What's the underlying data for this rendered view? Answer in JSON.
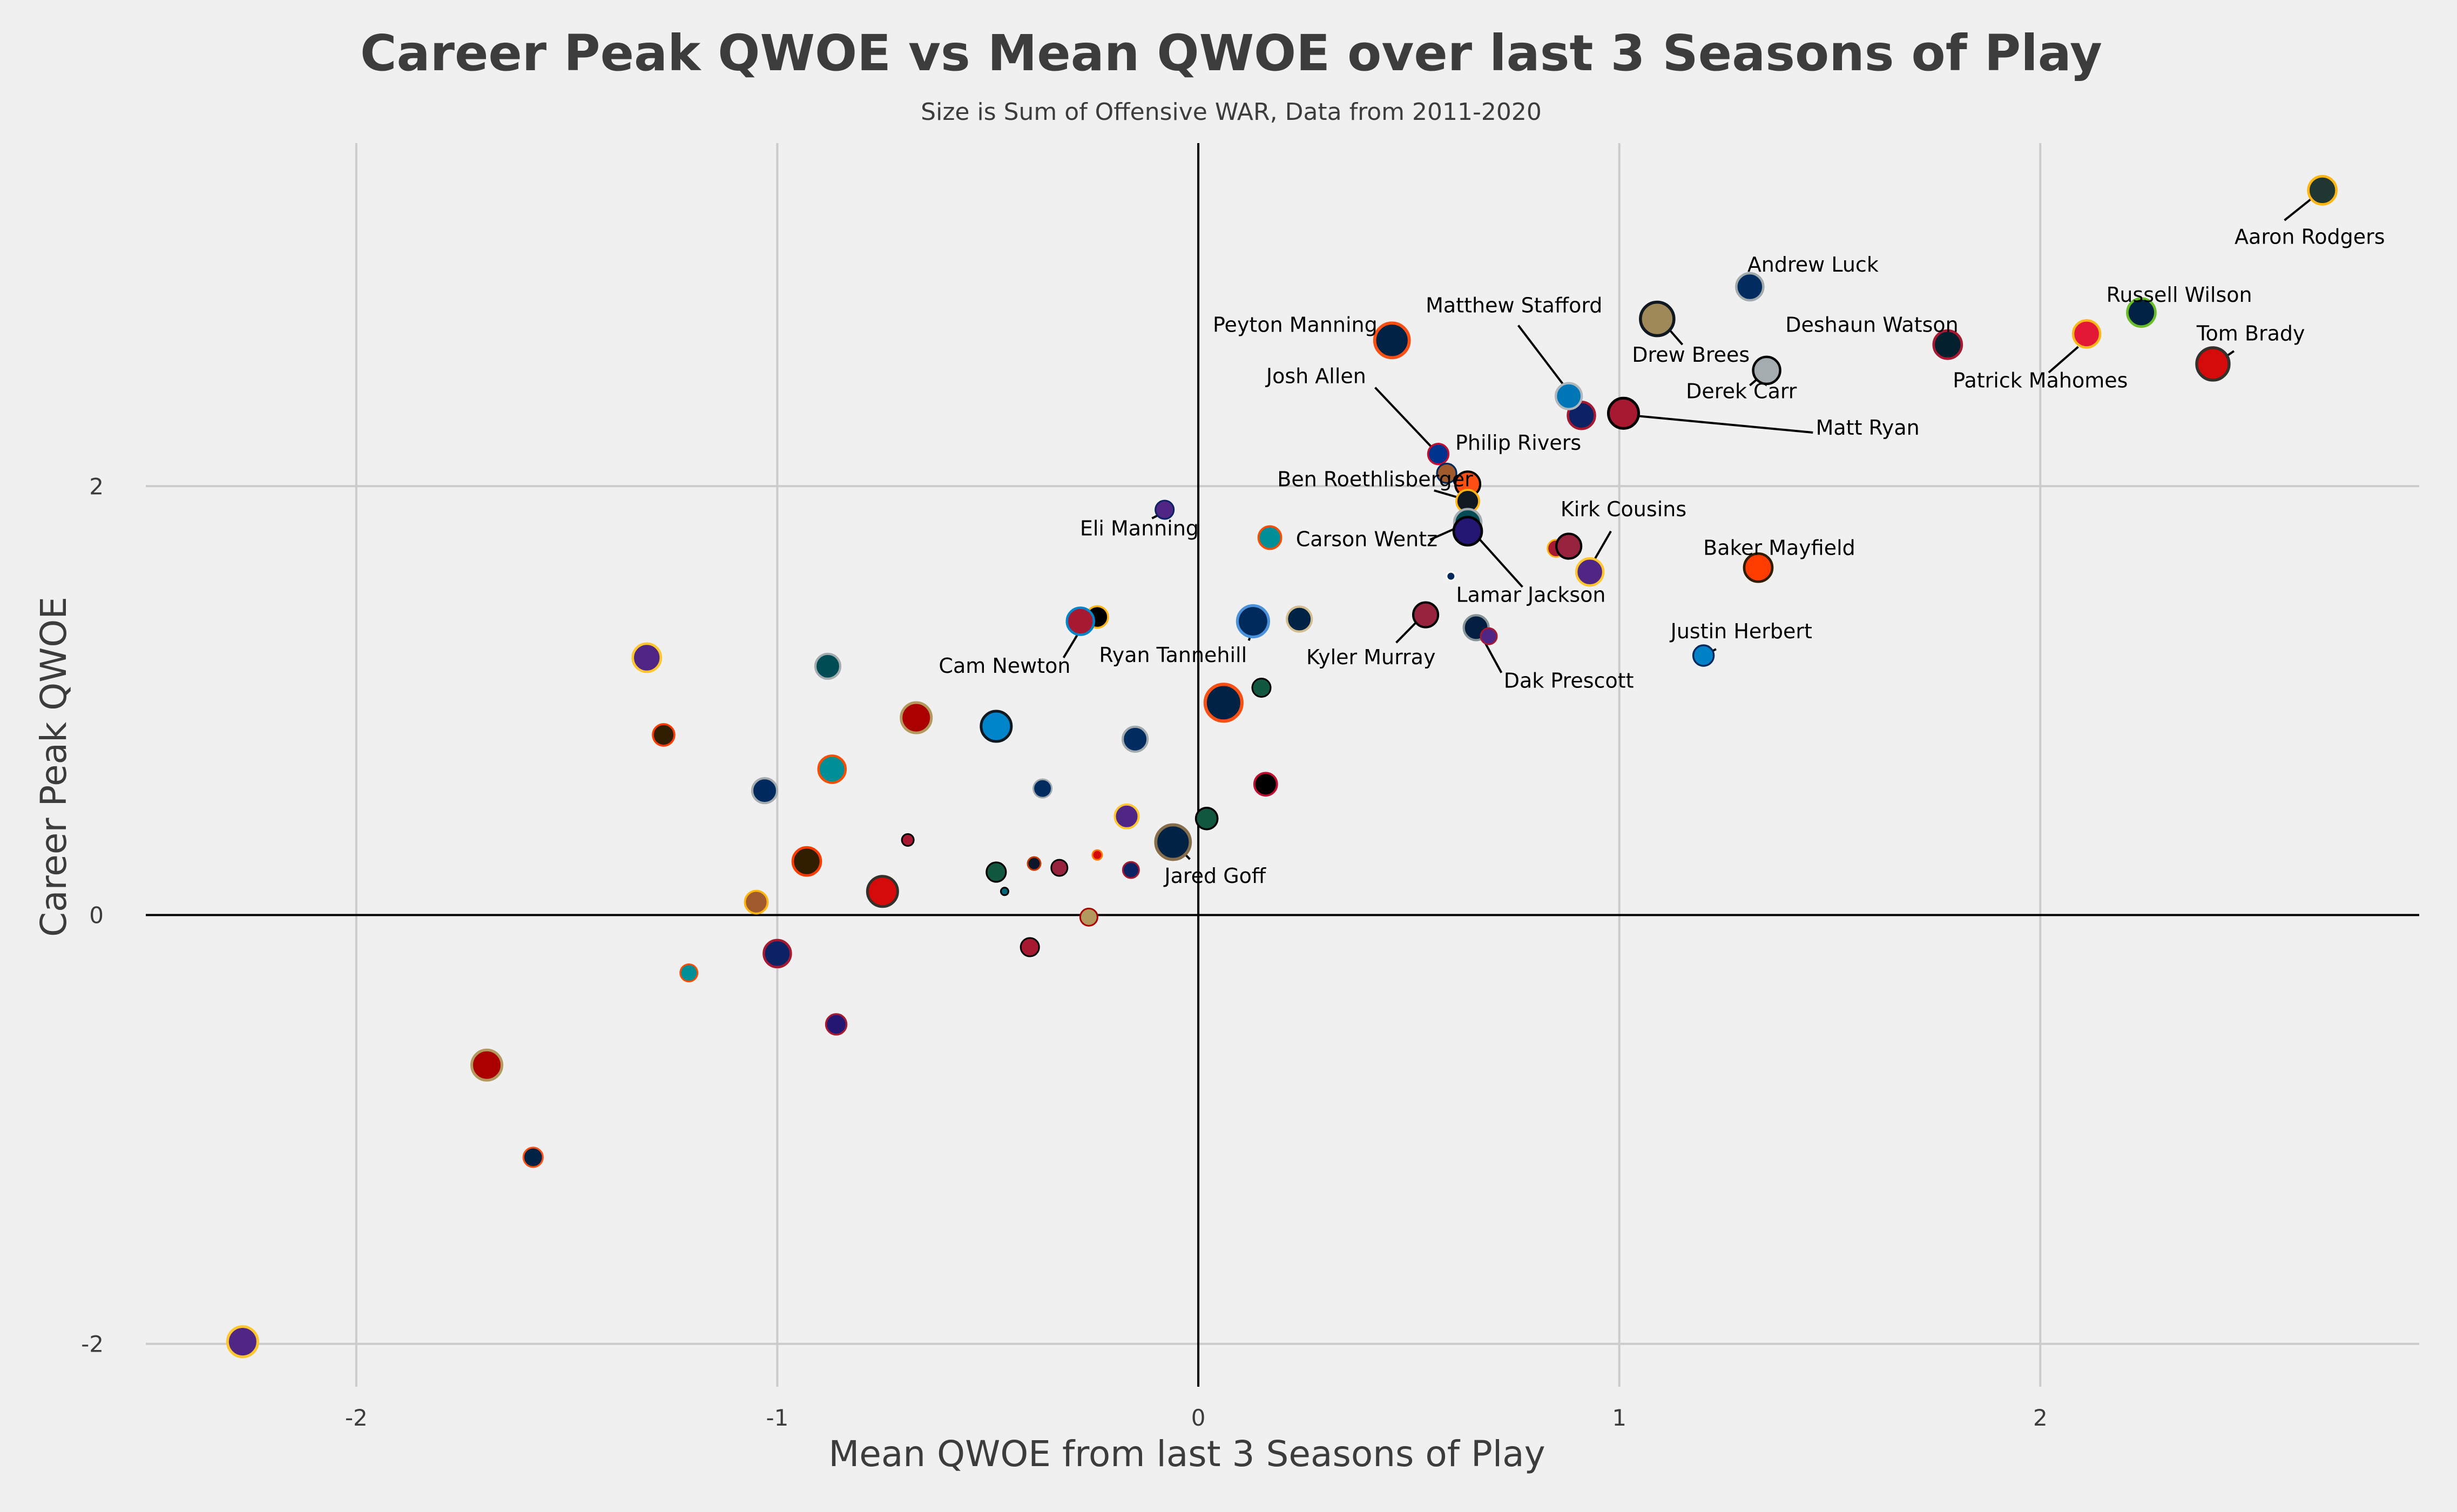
{
  "chart_data": {
    "type": "scatter",
    "title": "Career Peak QWOE vs Mean QWOE over last 3 Seasons of Play",
    "subtitle": "Size is Sum of Offensive WAR, Data from 2011-2020",
    "xlabel": "Mean QWOE from last 3 Seasons of Play",
    "ylabel": "Career Peak QWOE",
    "xlim": [
      -2.5,
      2.9
    ],
    "ylim": [
      -2.2,
      3.6
    ],
    "x_ticks": [
      -2,
      -1,
      0,
      1,
      2
    ],
    "y_ticks": [
      -2,
      0,
      2
    ],
    "x_tick_labels": [
      "-2",
      "-1",
      "0",
      "1",
      "2"
    ],
    "y_tick_labels": [
      "-2",
      "0",
      "2"
    ],
    "grid": true,
    "zero_lines": true,
    "points": [
      {
        "x": 2.67,
        "y": 3.38,
        "size": 52,
        "fill": "#203731",
        "edge": "#ffb612",
        "label": "Aaron Rodgers"
      },
      {
        "x": 2.41,
        "y": 2.57,
        "size": 60,
        "fill": "#d50a0a",
        "edge": "#34302b",
        "label": "Tom Brady"
      },
      {
        "x": 2.24,
        "y": 2.81,
        "size": 52,
        "fill": "#002244",
        "edge": "#69be28",
        "label": "Russell Wilson"
      },
      {
        "x": 2.11,
        "y": 2.71,
        "size": 50,
        "fill": "#e31837",
        "edge": "#ffb81c",
        "label": "Patrick Mahomes"
      },
      {
        "x": 1.78,
        "y": 2.66,
        "size": 52,
        "fill": "#03202f",
        "edge": "#a71930",
        "label": "Deshaun Watson"
      },
      {
        "x": 1.31,
        "y": 2.93,
        "size": 50,
        "fill": "#002c5f",
        "edge": "#a2aaad",
        "label": "Andrew Luck"
      },
      {
        "x": 1.35,
        "y": 2.54,
        "size": 50,
        "fill": "#a5acaf",
        "edge": "#000000",
        "label": "Derek Carr"
      },
      {
        "x": 1.09,
        "y": 2.78,
        "size": 62,
        "fill": "#9f8958",
        "edge": "#101820",
        "label": "Drew Brees"
      },
      {
        "x": 1.01,
        "y": 2.34,
        "size": 56,
        "fill": "#a71930",
        "edge": "#000000",
        "label": "Matt Ryan"
      },
      {
        "x": 0.91,
        "y": 2.33,
        "size": 50,
        "fill": "#0b2265",
        "edge": "#a71930",
        "label": ""
      },
      {
        "x": 0.88,
        "y": 2.42,
        "size": 48,
        "fill": "#0076b6",
        "edge": "#b0b7bc",
        "label": "Matthew Stafford"
      },
      {
        "x": 0.46,
        "y": 2.68,
        "size": 64,
        "fill": "#002244",
        "edge": "#fb4f14",
        "label": "Peyton Manning"
      },
      {
        "x": 0.57,
        "y": 2.15,
        "size": 38,
        "fill": "#00338d",
        "edge": "#c60c30",
        "label": "Josh Allen"
      },
      {
        "x": 0.59,
        "y": 2.06,
        "size": 36,
        "fill": "#a05a2c",
        "edge": "#002a5e",
        "label": "Philip Rivers"
      },
      {
        "x": 0.64,
        "y": 2.01,
        "size": 46,
        "fill": "#fb4f14",
        "edge": "#000000",
        "label": ""
      },
      {
        "x": 0.64,
        "y": 1.93,
        "size": 42,
        "fill": "#101820",
        "edge": "#ffb612",
        "label": "Ben Roethlisberger"
      },
      {
        "x": 0.64,
        "y": 1.83,
        "size": 50,
        "fill": "#004c54",
        "edge": "#a5acaf",
        "label": ""
      },
      {
        "x": 0.64,
        "y": 1.79,
        "size": 52,
        "fill": "#241773",
        "edge": "#000000",
        "label": "Lamar Jackson"
      },
      {
        "x": 0.6,
        "y": 1.58,
        "size": 16,
        "fill": "#002a5e",
        "edge": "#ffffff",
        "label": ""
      },
      {
        "x": 0.85,
        "y": 1.71,
        "size": 32,
        "fill": "#a71930",
        "edge": "#ffb612",
        "label": ""
      },
      {
        "x": 0.88,
        "y": 1.72,
        "size": 46,
        "fill": "#97233f",
        "edge": "#000000",
        "label": ""
      },
      {
        "x": 0.93,
        "y": 1.6,
        "size": 50,
        "fill": "#4f2683",
        "edge": "#ffc62f",
        "label": "Kirk Cousins"
      },
      {
        "x": 1.33,
        "y": 1.62,
        "size": 52,
        "fill": "#ff3c00",
        "edge": "#311d00",
        "label": "Baker Mayfield"
      },
      {
        "x": 1.2,
        "y": 1.21,
        "size": 38,
        "fill": "#0080c6",
        "edge": "#002a5e",
        "label": "Justin Herbert"
      },
      {
        "x": 0.66,
        "y": 1.34,
        "size": 46,
        "fill": "#041e42",
        "edge": "#869397",
        "label": "Dak Prescott"
      },
      {
        "x": 0.69,
        "y": 1.3,
        "size": 30,
        "fill": "#4f2683",
        "edge": "#a71930",
        "label": ""
      },
      {
        "x": 0.54,
        "y": 1.4,
        "size": 46,
        "fill": "#97233f",
        "edge": "#000000",
        "label": "Kyler Murray"
      },
      {
        "x": 0.24,
        "y": 1.38,
        "size": 46,
        "fill": "#002244",
        "edge": "#d3bc8d",
        "label": ""
      },
      {
        "x": 0.13,
        "y": 1.37,
        "size": 58,
        "fill": "#002a5c",
        "edge": "#4b92db",
        "label": "Ryan Tannehill"
      },
      {
        "x": 0.17,
        "y": 1.76,
        "size": 42,
        "fill": "#008e97",
        "edge": "#fc4c02",
        "label": ""
      },
      {
        "x": 0.15,
        "y": 1.06,
        "size": 34,
        "fill": "#125740",
        "edge": "#000000",
        "label": ""
      },
      {
        "x": -0.08,
        "y": 1.89,
        "size": 34,
        "fill": "#4f2683",
        "edge": "#0b2265",
        "label": "Eli Manning"
      },
      {
        "x": -0.24,
        "y": 1.39,
        "size": 40,
        "fill": "#000000",
        "edge": "#ffb612",
        "label": ""
      },
      {
        "x": -0.28,
        "y": 1.37,
        "size": 50,
        "fill": "#a71930",
        "edge": "#0085ca",
        "label": "Cam Newton"
      },
      {
        "x": 0.06,
        "y": 0.99,
        "size": 68,
        "fill": "#002244",
        "edge": "#fb4f14",
        "label": ""
      },
      {
        "x": 0.16,
        "y": 0.61,
        "size": 42,
        "fill": "#000000",
        "edge": "#c60c30",
        "label": ""
      },
      {
        "x": -0.15,
        "y": 0.82,
        "size": 46,
        "fill": "#002c5f",
        "edge": "#a2aaad",
        "label": ""
      },
      {
        "x": -0.48,
        "y": 0.88,
        "size": 56,
        "fill": "#0085ca",
        "edge": "#101820",
        "label": ""
      },
      {
        "x": -0.67,
        "y": 0.92,
        "size": 56,
        "fill": "#aa0000",
        "edge": "#b3995d",
        "label": ""
      },
      {
        "x": -0.37,
        "y": 0.59,
        "size": 34,
        "fill": "#002c5f",
        "edge": "#a2aaad",
        "label": ""
      },
      {
        "x": -0.17,
        "y": 0.46,
        "size": 44,
        "fill": "#4f2683",
        "edge": "#ffc62f",
        "label": ""
      },
      {
        "x": 0.02,
        "y": 0.45,
        "size": 40,
        "fill": "#125740",
        "edge": "#000000",
        "label": ""
      },
      {
        "x": -0.06,
        "y": 0.34,
        "size": 64,
        "fill": "#002244",
        "edge": "#866d4b",
        "label": "Jared Goff"
      },
      {
        "x": -0.16,
        "y": 0.21,
        "size": 30,
        "fill": "#0b2265",
        "edge": "#a71930",
        "label": ""
      },
      {
        "x": -0.24,
        "y": 0.28,
        "size": 18,
        "fill": "#d50a0a",
        "edge": "#ff7900",
        "label": ""
      },
      {
        "x": -0.33,
        "y": 0.22,
        "size": 30,
        "fill": "#97233f",
        "edge": "#000000",
        "label": ""
      },
      {
        "x": -0.39,
        "y": 0.24,
        "size": 24,
        "fill": "#0b162a",
        "edge": "#c83803",
        "label": ""
      },
      {
        "x": -0.48,
        "y": 0.2,
        "size": 36,
        "fill": "#125740",
        "edge": "#000000",
        "label": ""
      },
      {
        "x": -0.46,
        "y": 0.11,
        "size": 14,
        "fill": "#006778",
        "edge": "#000000",
        "label": ""
      },
      {
        "x": -0.69,
        "y": 0.35,
        "size": 22,
        "fill": "#a71930",
        "edge": "#000000",
        "label": ""
      },
      {
        "x": -0.75,
        "y": 0.11,
        "size": 56,
        "fill": "#d50a0a",
        "edge": "#34302b",
        "label": ""
      },
      {
        "x": -0.93,
        "y": 0.25,
        "size": 52,
        "fill": "#311d00",
        "edge": "#ff3c00",
        "label": ""
      },
      {
        "x": -1.05,
        "y": 0.06,
        "size": 42,
        "fill": "#a05a2c",
        "edge": "#ffb612",
        "label": ""
      },
      {
        "x": -0.26,
        "y": -0.01,
        "size": 32,
        "fill": "#b3995d",
        "edge": "#aa0000",
        "label": ""
      },
      {
        "x": -0.4,
        "y": -0.15,
        "size": 34,
        "fill": "#a71930",
        "edge": "#000000",
        "label": ""
      },
      {
        "x": -0.87,
        "y": 0.68,
        "size": 50,
        "fill": "#008e97",
        "edge": "#fc4c02",
        "label": ""
      },
      {
        "x": -1.03,
        "y": 0.58,
        "size": 46,
        "fill": "#002a5e",
        "edge": "#a5acaf",
        "label": ""
      },
      {
        "x": -0.88,
        "y": 1.16,
        "size": 46,
        "fill": "#004c54",
        "edge": "#a5acaf",
        "label": ""
      },
      {
        "x": -1.27,
        "y": 0.84,
        "size": 40,
        "fill": "#311d00",
        "edge": "#ff3c00",
        "label": ""
      },
      {
        "x": -1.31,
        "y": 1.2,
        "size": 52,
        "fill": "#4f2683",
        "edge": "#ffc62f",
        "label": ""
      },
      {
        "x": -1.0,
        "y": -0.18,
        "size": 50,
        "fill": "#0b2265",
        "edge": "#a71930",
        "label": ""
      },
      {
        "x": -1.21,
        "y": -0.27,
        "size": 32,
        "fill": "#008e97",
        "edge": "#fc4c02",
        "label": ""
      },
      {
        "x": -0.86,
        "y": -0.51,
        "size": 38,
        "fill": "#241773",
        "edge": "#a71930",
        "label": ""
      },
      {
        "x": -1.69,
        "y": -0.7,
        "size": 56,
        "fill": "#aa0000",
        "edge": "#b3995d",
        "label": ""
      },
      {
        "x": -1.58,
        "y": -1.13,
        "size": 36,
        "fill": "#002244",
        "edge": "#fb4f14",
        "label": ""
      },
      {
        "x": -2.27,
        "y": -1.99,
        "size": 56,
        "fill": "#4f2683",
        "edge": "#ffc62f",
        "label": ""
      }
    ],
    "annotations": [
      {
        "text": "Aaron Rodgers",
        "tx": 2.64,
        "ty": 3.13,
        "anchor": "middle",
        "arrow": [
          2.58,
          3.24,
          2.65,
          3.35
        ]
      },
      {
        "text": "Andrew Luck",
        "tx": 1.46,
        "ty": 3.0,
        "anchor": "middle",
        "arrow": null
      },
      {
        "text": "Russell Wilson",
        "tx": 2.33,
        "ty": 2.86,
        "anchor": "middle",
        "arrow": [
          2.27,
          2.8,
          2.25,
          2.8
        ]
      },
      {
        "text": "Tom Brady",
        "tx": 2.5,
        "ty": 2.68,
        "anchor": "middle",
        "arrow": [
          2.46,
          2.63,
          2.43,
          2.59
        ]
      },
      {
        "text": "Matthew Stafford",
        "tx": 0.75,
        "ty": 2.81,
        "anchor": "middle",
        "arrow": [
          0.76,
          2.75,
          0.88,
          2.44
        ]
      },
      {
        "text": "Peyton Manning",
        "tx": 0.23,
        "ty": 2.72,
        "anchor": "middle",
        "arrow": [
          0.43,
          2.7,
          0.45,
          2.68
        ]
      },
      {
        "text": "Deshaun Watson",
        "tx": 1.6,
        "ty": 2.72,
        "anchor": "middle",
        "arrow": [
          1.75,
          2.66,
          1.77,
          2.66
        ]
      },
      {
        "text": "Drew Brees",
        "tx": 1.17,
        "ty": 2.58,
        "anchor": "middle",
        "arrow": [
          1.15,
          2.66,
          1.11,
          2.75
        ]
      },
      {
        "text": "Patrick Mahomes",
        "tx": 2.0,
        "ty": 2.46,
        "anchor": "middle",
        "arrow": [
          2.02,
          2.53,
          2.09,
          2.65
        ]
      },
      {
        "text": "Josh Allen",
        "tx": 0.28,
        "ty": 2.48,
        "anchor": "middle",
        "arrow": [
          0.42,
          2.46,
          0.56,
          2.17
        ]
      },
      {
        "text": "Derek Carr",
        "tx": 1.29,
        "ty": 2.41,
        "anchor": "middle",
        "arrow": [
          1.31,
          2.47,
          1.34,
          2.52
        ]
      },
      {
        "text": "Matt Ryan",
        "tx": 1.59,
        "ty": 2.24,
        "anchor": "middle",
        "arrow": [
          1.46,
          2.25,
          1.03,
          2.33
        ]
      },
      {
        "text": "Philip Rivers",
        "tx": 0.76,
        "ty": 2.17,
        "anchor": "middle",
        "arrow": null
      },
      {
        "text": "Ben Roethlisberger",
        "tx": 0.42,
        "ty": 2.0,
        "anchor": "middle",
        "arrow": [
          0.56,
          1.98,
          0.63,
          1.94
        ]
      },
      {
        "text": "Kirk Cousins",
        "tx": 1.01,
        "ty": 1.86,
        "anchor": "middle",
        "arrow": [
          0.98,
          1.79,
          0.93,
          1.62
        ]
      },
      {
        "text": "Eli Manning",
        "tx": -0.14,
        "ty": 1.77,
        "anchor": "middle",
        "arrow": [
          -0.11,
          1.85,
          -0.08,
          1.88
        ]
      },
      {
        "text": "Carson Wentz",
        "tx": 0.4,
        "ty": 1.72,
        "anchor": "middle",
        "arrow": [
          0.55,
          1.75,
          0.63,
          1.82
        ]
      },
      {
        "text": "Baker Mayfield",
        "tx": 1.38,
        "ty": 1.68,
        "anchor": "middle",
        "arrow": [
          1.36,
          1.65,
          1.33,
          1.62
        ]
      },
      {
        "text": "Lamar Jackson",
        "tx": 0.79,
        "ty": 1.46,
        "anchor": "middle",
        "arrow": [
          0.77,
          1.53,
          0.66,
          1.77
        ]
      },
      {
        "text": "Justin Herbert",
        "tx": 1.29,
        "ty": 1.29,
        "anchor": "middle",
        "arrow": [
          1.23,
          1.24,
          1.21,
          1.22
        ]
      },
      {
        "text": "Kyler Murray",
        "tx": 0.41,
        "ty": 1.17,
        "anchor": "middle",
        "arrow": [
          0.47,
          1.27,
          0.52,
          1.37
        ]
      },
      {
        "text": "Ryan Tannehill",
        "tx": -0.06,
        "ty": 1.18,
        "anchor": "middle",
        "arrow": [
          0.12,
          1.28,
          0.13,
          1.34
        ]
      },
      {
        "text": "Cam Newton",
        "tx": -0.46,
        "ty": 1.13,
        "anchor": "middle",
        "arrow": [
          -0.32,
          1.2,
          -0.28,
          1.33
        ]
      },
      {
        "text": "Dak Prescott",
        "tx": 0.88,
        "ty": 1.06,
        "anchor": "middle",
        "arrow": [
          0.72,
          1.13,
          0.67,
          1.31
        ]
      },
      {
        "text": "Jared Goff",
        "tx": 0.04,
        "ty": 0.15,
        "anchor": "middle",
        "arrow": [
          -0.02,
          0.26,
          -0.05,
          0.32
        ]
      }
    ]
  },
  "colors": {
    "background": "#f0f0f0",
    "grid": "#cbcbcb",
    "zero_line": "#000000",
    "text": "#3c3c3c"
  }
}
